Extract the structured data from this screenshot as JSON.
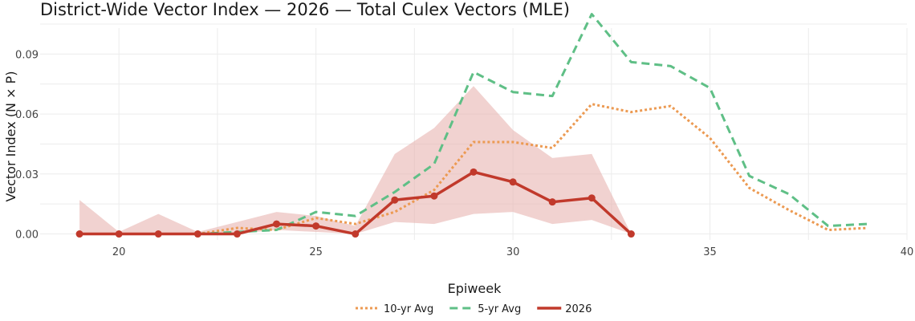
{
  "chart_data": {
    "type": "line",
    "title": "District-Wide Vector Index — 2026 — Total Culex Vectors (MLE)",
    "xlabel": "Epiweek",
    "ylabel": "Vector Index (N × P)",
    "xlim": [
      18,
      40
    ],
    "ylim": [
      -0.003,
      0.103
    ],
    "xticks": [
      20,
      25,
      30,
      35,
      40
    ],
    "yticks": [
      0.0,
      0.03,
      0.06,
      0.09
    ],
    "ytick_labels": [
      "0.00",
      "0.03",
      "0.06",
      "0.09"
    ],
    "grid": true,
    "legend_position": "bottom",
    "series": [
      {
        "name": "10-yr Avg",
        "color": "#ec9a52",
        "style": "dotted",
        "x": [
          22,
          23,
          24,
          25,
          26,
          27,
          28,
          29,
          30,
          31,
          32,
          33,
          34,
          35,
          36,
          37,
          38,
          39
        ],
        "y": [
          0.0,
          0.003,
          0.002,
          0.008,
          0.005,
          0.011,
          0.022,
          0.046,
          0.046,
          0.043,
          0.065,
          0.061,
          0.064,
          0.048,
          0.023,
          0.012,
          0.002,
          0.003
        ]
      },
      {
        "name": "5-yr Avg",
        "color": "#5fbf86",
        "style": "dashed",
        "x": [
          22,
          23,
          24,
          25,
          26,
          27,
          28,
          29,
          30,
          31,
          32,
          33,
          34,
          35,
          36,
          37,
          38,
          39
        ],
        "y": [
          0.0,
          0.001,
          0.002,
          0.011,
          0.009,
          0.021,
          0.035,
          0.081,
          0.071,
          0.069,
          0.11,
          0.086,
          0.084,
          0.073,
          0.029,
          0.02,
          0.004,
          0.005
        ]
      },
      {
        "name": "2026",
        "color": "#c1392b",
        "style": "solid",
        "markers": true,
        "x": [
          19,
          20,
          21,
          22,
          23,
          24,
          25,
          26,
          27,
          28,
          29,
          30,
          31,
          32,
          33
        ],
        "y": [
          0.0,
          0.0,
          0.0,
          0.0,
          0.0,
          0.005,
          0.004,
          0.0,
          0.017,
          0.019,
          0.031,
          0.026,
          0.016,
          0.018,
          0.0
        ],
        "band_lower": [
          0.0,
          0.0,
          0.0,
          0.0,
          0.0,
          0.002,
          0.001,
          0.0,
          0.006,
          0.005,
          0.01,
          0.011,
          0.005,
          0.007,
          0.0
        ],
        "band_upper": [
          0.017,
          0.001,
          0.01,
          0.001,
          0.006,
          0.011,
          0.009,
          0.004,
          0.04,
          0.053,
          0.074,
          0.052,
          0.038,
          0.04,
          0.0
        ],
        "band_color": "#e8b4b0"
      }
    ]
  }
}
